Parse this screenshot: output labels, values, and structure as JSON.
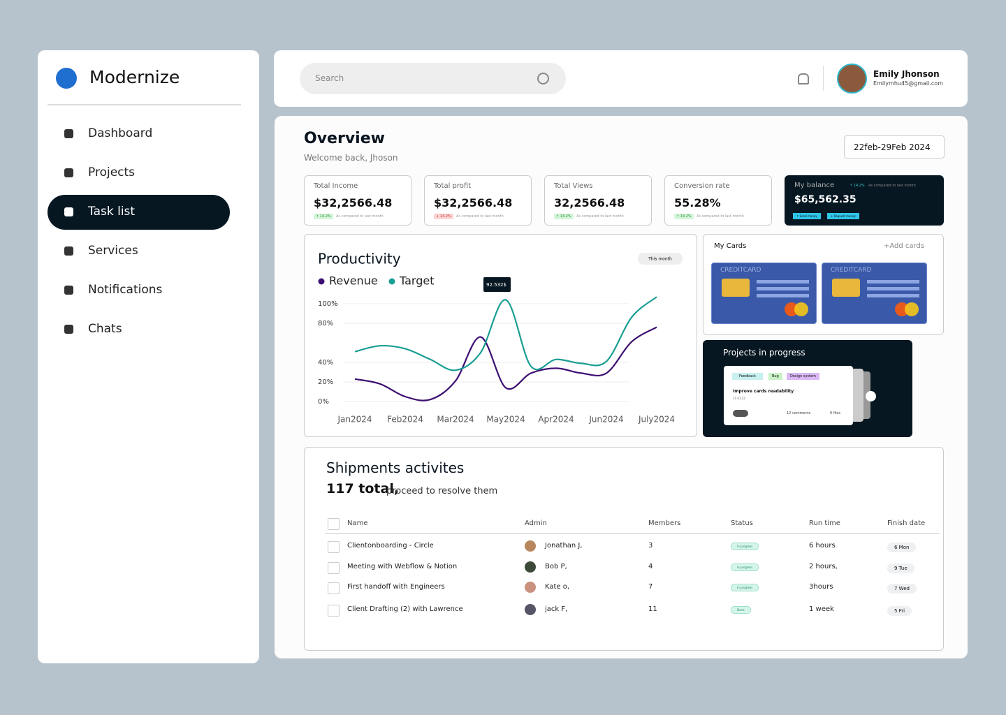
{
  "sidebar": {
    "brand": "Modernize",
    "nav": [
      "Dashboard",
      "Projects",
      "Task list",
      "Services",
      "Notifications",
      "Chats"
    ],
    "active": 2
  },
  "topbar": {
    "search_placeholder": "Search",
    "user_name": "Emily Jhonson",
    "user_email": "Emilymhu45@gmail.com"
  },
  "overview": {
    "title": "Overview",
    "subtitle": "Welcome back, Jhoson",
    "date_range": "22feb-29Feb 2024"
  },
  "stats": [
    {
      "label": "Total Income",
      "value": "$32,2566.48",
      "change": "↑ 14.2%",
      "trend": "up",
      "note": "As compared to last month"
    },
    {
      "label": "Total profit",
      "value": "$32,2566.48",
      "change": "↓ 14.2%",
      "trend": "down",
      "note": "As compared to last month"
    },
    {
      "label": "Total Views",
      "value": "32,2566.48",
      "change": "↑ 14.2%",
      "trend": "up",
      "note": "As compared to last month"
    },
    {
      "label": "Conversion rate",
      "value": "55.28%",
      "change": "↑ 14.2%",
      "trend": "up",
      "note": "As compared to last month"
    }
  ],
  "balance": {
    "label": "My balance",
    "value": "$65,562.35",
    "change": "↑ 14.2%",
    "note": "As compared to last month",
    "actions": [
      "↑ Send money",
      "↓ Request money"
    ]
  },
  "chart_data": {
    "type": "line",
    "title": "Productivity",
    "filter": "This month",
    "annotation": "92.532$",
    "x": [
      0,
      0.5,
      1,
      1.5,
      2,
      2.5,
      3,
      3.5,
      4,
      4.5,
      5,
      5.5,
      6
    ],
    "xlim": [
      -0.4,
      6.6
    ],
    "xticks": [
      {
        "value": 0,
        "label": "Jan2024"
      },
      {
        "value": 1,
        "label": "Feb2024"
      },
      {
        "value": 2,
        "label": "Mar2024"
      },
      {
        "value": 3,
        "label": "May2024"
      },
      {
        "value": 4,
        "label": "Apr2024"
      },
      {
        "value": 5,
        "label": "Jun2024"
      },
      {
        "value": 6,
        "label": "July2024"
      }
    ],
    "ylim": [
      0,
      110
    ],
    "yticks": [
      {
        "value": 0,
        "label": "0%"
      },
      {
        "value": 20,
        "label": "20%"
      },
      {
        "value": 40,
        "label": "40%"
      },
      {
        "value": 80,
        "label": "80%"
      },
      {
        "value": 100,
        "label": "100%"
      }
    ],
    "grid": true,
    "series": [
      {
        "name": "Revenue",
        "color": "#3d0f73",
        "values": [
          23,
          18,
          5,
          2,
          21,
          66,
          14,
          29,
          34,
          29,
          29,
          61,
          76
        ]
      },
      {
        "name": "Target",
        "color": "#1a9e94",
        "values": [
          51,
          57,
          54,
          43,
          32,
          50,
          104,
          36,
          43,
          39,
          41,
          86,
          107
        ]
      }
    ]
  },
  "cards": {
    "title": "My Cards",
    "add": "+Add cards",
    "items": [
      "CREDITCARD",
      "CREDITCARD"
    ]
  },
  "projects": {
    "title": "Projects in progress",
    "tags": [
      "Feedback",
      "Bug",
      "Design system"
    ],
    "task": "Improve cards readability",
    "date": "21.03.22",
    "comments": "12 comments",
    "files": "0 files"
  },
  "shipments": {
    "title": "Shipments activites",
    "total": "117 total,",
    "total_note": "proceed to resolve them",
    "columns": [
      "Name",
      "Admin",
      "Members",
      "Status",
      "Run time",
      "Finish date"
    ],
    "rows": [
      [
        "Clientonboarding - Circle",
        "Jonathan J,",
        3,
        "In progress",
        "6 hours",
        "6 Mon"
      ],
      [
        "Meeting with Webflow & Notion",
        "Bob P,",
        4,
        "In progress",
        "2 hours,",
        "9 Tue"
      ],
      [
        "First handoff with Engineers",
        "Kate o,",
        7,
        "In progress",
        "3hours",
        "7 Wed"
      ],
      [
        "Client Drafting (2) with Lawrence",
        "jack F,",
        11,
        "Done",
        "1 week",
        "5 Fri"
      ]
    ]
  }
}
